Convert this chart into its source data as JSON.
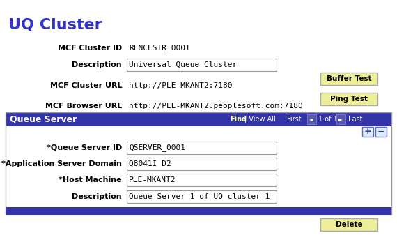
{
  "title": "UQ Cluster",
  "title_color": "#3333cc",
  "page_bg": "#ffffff",
  "fields_top": [
    {
      "label": "MCF Cluster ID",
      "value": "RENCLSTR_0001",
      "editable": false
    },
    {
      "label": "Description",
      "value": "Universal Queue Cluster",
      "editable": true
    },
    {
      "label": "MCF Cluster URL",
      "value": "http://PLE-MKANT2:7180",
      "editable": false
    },
    {
      "label": "MCF Browser URL",
      "value": "http://PLE-MKANT2.peoplesoft.com:7180",
      "editable": false
    }
  ],
  "section_header": "Queue Server",
  "section_header_bg": "#3333aa",
  "section_header_color": "#ffffff",
  "fields_bottom": [
    {
      "label": "*Queue Server ID",
      "value": "QSERVER_0001"
    },
    {
      "label": "*Application Server Domain",
      "value": "Q8041I D2"
    },
    {
      "label": "*Host Machine",
      "value": "PLE-MKANT2"
    },
    {
      "label": "Description",
      "value": "Queue Server 1 of UQ cluster 1"
    }
  ],
  "section_footer_bg": "#3333aa",
  "delete_button": "Delete",
  "buffer_button": "Buffer Test",
  "ping_button": "Ping Test",
  "input_bg": "#ffffff",
  "input_border": "#999999",
  "label_color": "#000000",
  "font_size_title": 16,
  "font_size_label": 8,
  "font_size_value": 8,
  "font_size_section": 9,
  "font_size_button": 7.5,
  "nav_find": "Find",
  "nav_viewall": "| View All",
  "nav_first": "First",
  "nav_1of1": "1 of 1",
  "nav_last": "Last"
}
